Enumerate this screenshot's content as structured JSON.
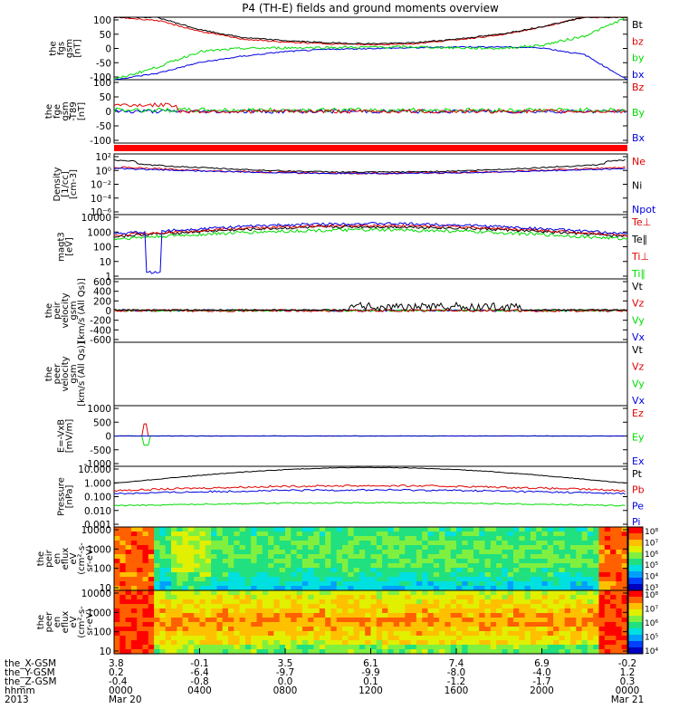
{
  "title": "P4 (TH-E) fields and ground moments overview",
  "colors": {
    "black": "#000000",
    "red": "#e00000",
    "green": "#00dd00",
    "blue": "#0000e0"
  },
  "panels": [
    {
      "id": "fgs",
      "ylabel": [
        "the",
        "fgs",
        "gsm",
        "[nT]"
      ],
      "ticks": [
        "100",
        "50",
        "0",
        "-50",
        "-100"
      ],
      "legend": [
        {
          "text": "Bt",
          "color": "black"
        },
        {
          "text": "bz",
          "color": "red"
        },
        {
          "text": "by",
          "color": "green"
        },
        {
          "text": "bx",
          "color": "blue"
        }
      ]
    },
    {
      "id": "fge",
      "ylabel": [
        "the",
        "fge",
        "gsm",
        "-T89",
        "[nT]"
      ],
      "ticks": [
        "100",
        "50",
        "0",
        "-50",
        "-100"
      ],
      "legend": [
        {
          "text": "Bz",
          "color": "red"
        },
        {
          "text": "By",
          "color": "green"
        },
        {
          "text": "Bx",
          "color": "blue"
        }
      ]
    },
    {
      "id": "density",
      "ylabel": [
        "Density",
        "[1/cc]",
        "[cm-3]"
      ],
      "ticks": [
        "10²",
        "10⁰",
        "10⁻²",
        "10⁻⁴",
        "10⁻⁶"
      ],
      "legend": [
        {
          "text": "Ne",
          "color": "red"
        },
        {
          "text": "Ni",
          "color": "black"
        },
        {
          "text": "Npot",
          "color": "blue"
        }
      ]
    },
    {
      "id": "temp",
      "ylabel": [
        "magt3",
        "[eV]"
      ],
      "ticks": [
        "10000",
        "1000",
        "100",
        "10",
        "1"
      ],
      "legend": [
        {
          "text": "Te⊥",
          "color": "red"
        },
        {
          "text": "Te∥",
          "color": "black"
        },
        {
          "text": "Ti⊥",
          "color": "red"
        },
        {
          "text": "Ti∥",
          "color": "green"
        }
      ]
    },
    {
      "id": "peir_vel",
      "ylabel": [
        "the",
        "peir",
        "velocity",
        "gsm",
        "[km/s (All Qs)]"
      ],
      "ticks": [
        "600",
        "400",
        "200",
        "0",
        "-200",
        "-400",
        "-600"
      ],
      "legend": [
        {
          "text": "Vt",
          "color": "black"
        },
        {
          "text": "Vz",
          "color": "red"
        },
        {
          "text": "Vy",
          "color": "green"
        },
        {
          "text": "Vx",
          "color": "blue"
        }
      ]
    },
    {
      "id": "peer_vel",
      "ylabel": [
        "the",
        "peer",
        "velocity",
        "gsm",
        "[km/s (All Qs)]"
      ],
      "ticks": [],
      "legend": [
        {
          "text": "Vt",
          "color": "black"
        },
        {
          "text": "Vz",
          "color": "red"
        },
        {
          "text": "Vy",
          "color": "green"
        },
        {
          "text": "Vx",
          "color": "blue"
        }
      ]
    },
    {
      "id": "efield",
      "ylabel": [
        "E=-VxB",
        "[mV/m]"
      ],
      "ticks": [
        "1000",
        "500",
        "0",
        "-500",
        "-1000"
      ],
      "legend": [
        {
          "text": "Ez",
          "color": "red"
        },
        {
          "text": "Ey",
          "color": "green"
        },
        {
          "text": "Ex",
          "color": "blue"
        }
      ]
    },
    {
      "id": "pressure",
      "ylabel": [
        "Pressure",
        "[nPa]"
      ],
      "ticks": [
        "10.000",
        "1.000",
        "0.100",
        "0.010",
        "0.001"
      ],
      "legend": [
        {
          "text": "Pt",
          "color": "black"
        },
        {
          "text": "Pb",
          "color": "red"
        },
        {
          "text": "Pe",
          "color": "blue"
        },
        {
          "text": "Pi",
          "color": "blue"
        }
      ]
    },
    {
      "id": "peir_spec",
      "ylabel": [
        "the",
        "peir",
        "en",
        "eflux",
        "eV",
        "(cm²-s-",
        "sr-eV)"
      ],
      "ticks": [
        "10000",
        "1000",
        "100",
        "10"
      ],
      "colorbar": [
        "10⁸",
        "10⁷",
        "10⁶",
        "10⁵",
        "10⁴",
        "10³"
      ]
    },
    {
      "id": "peer_spec",
      "ylabel": [
        "the",
        "peer",
        "en",
        "eflux",
        "eV",
        "(cm²-s-",
        "sr-eV)"
      ],
      "ticks": [
        "10000",
        "1000",
        "100",
        "10"
      ],
      "colorbar": [
        "10⁸",
        "10⁷",
        "10⁶",
        "10⁵",
        "10⁴"
      ]
    }
  ],
  "ephemeris": {
    "labels": [
      "the_X-GSM",
      "the_Y-GSM",
      "the_Z-GSM",
      "hhmm",
      "2013"
    ],
    "columns": [
      [
        "3.8",
        "0.2",
        "-0.4",
        "0000",
        "Mar 20"
      ],
      [
        "-0.1",
        "-6.4",
        "-0.8",
        "0400",
        ""
      ],
      [
        "3.5",
        "-9.7",
        "0.0",
        "0800",
        ""
      ],
      [
        "6.1",
        "-9.9",
        "0.1",
        "1200",
        ""
      ],
      [
        "7.4",
        "-8.0",
        "-1.2",
        "1600",
        ""
      ],
      [
        "6.9",
        "-4.0",
        "-1.7",
        "2000",
        ""
      ],
      [
        "-0.2",
        "1.2",
        "0.3",
        "0000",
        "Mar 21"
      ]
    ]
  },
  "chart_data": {
    "type": "line",
    "title": "P4 (TH-E) fields and ground moments overview",
    "x": [
      "0000",
      "0400",
      "0800",
      "1200",
      "1600",
      "2000",
      "0000"
    ],
    "xrange": [
      "2013 Mar 20 0000",
      "2013 Mar 21 0000"
    ],
    "series_fgs": {
      "hours": [
        0,
        2,
        4,
        6,
        8,
        10,
        12,
        14,
        16,
        18,
        20,
        22,
        24
      ],
      "Bt": [
        100,
        100,
        60,
        35,
        25,
        18,
        15,
        18,
        30,
        45,
        70,
        100,
        100
      ],
      "bz": [
        100,
        90,
        55,
        30,
        20,
        15,
        12,
        15,
        28,
        42,
        68,
        100,
        100
      ],
      "by": [
        -100,
        -60,
        -10,
        0,
        2,
        3,
        4,
        5,
        2,
        0,
        10,
        40,
        100
      ],
      "bx": [
        -100,
        -80,
        -45,
        -25,
        -10,
        -3,
        0,
        2,
        5,
        5,
        2,
        -20,
        -100
      ]
    }
  }
}
